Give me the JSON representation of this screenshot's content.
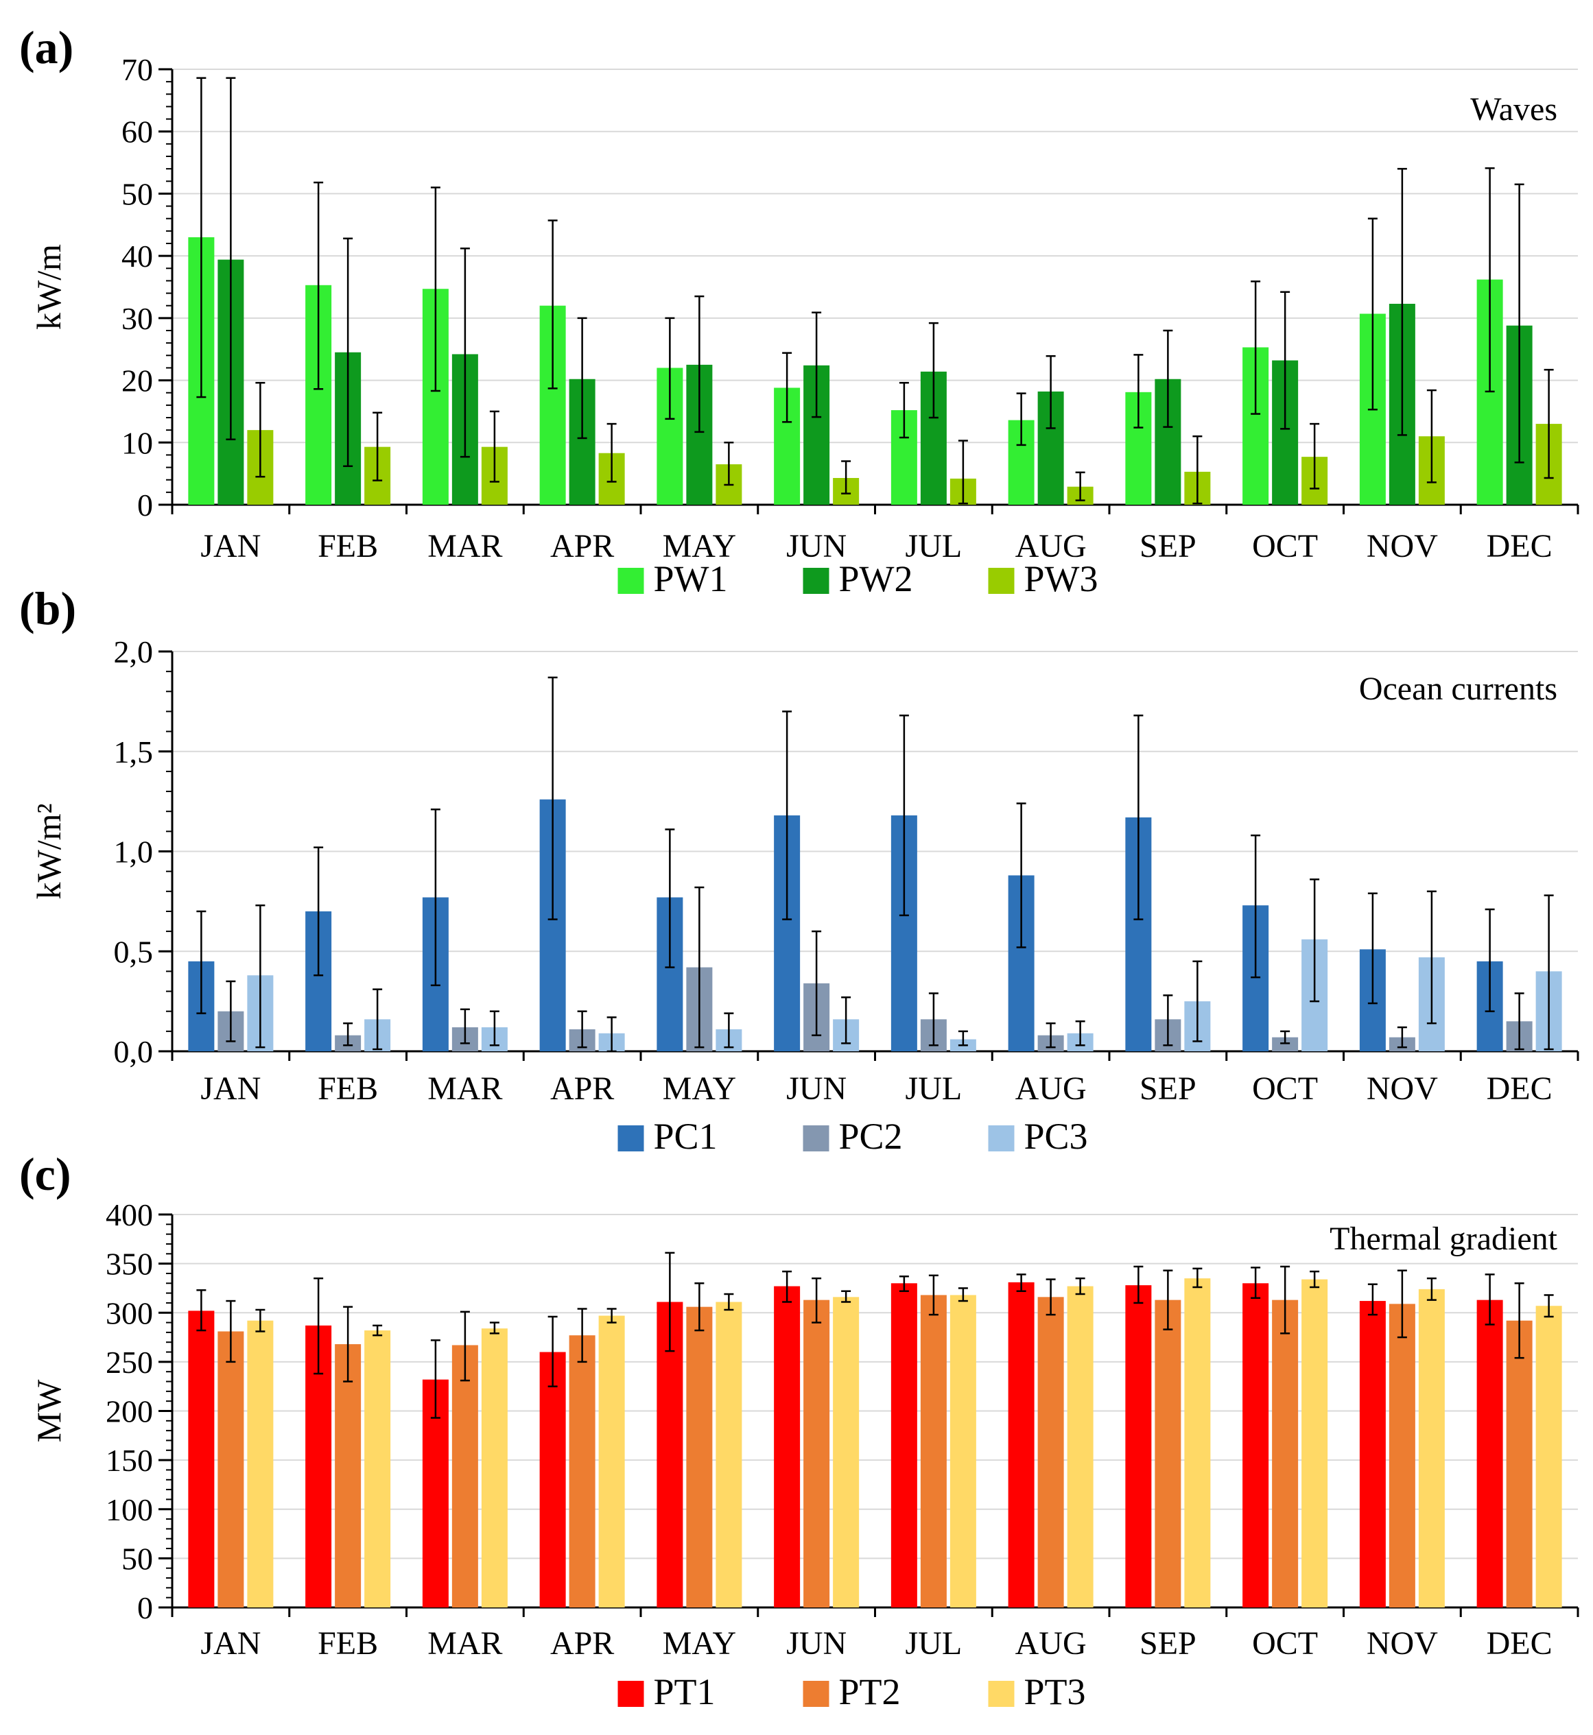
{
  "figure": {
    "panel_labels": [
      "(a)",
      "(b)",
      "(c)"
    ]
  },
  "chart_data": [
    {
      "type": "bar",
      "panel": "(a)",
      "title": "Waves",
      "ylabel": "kW/m",
      "xlabel": "",
      "ylim": [
        0,
        70
      ],
      "yticks": [
        0,
        10,
        20,
        30,
        40,
        50,
        60,
        70
      ],
      "ytick_labels": [
        "0",
        "10",
        "20",
        "30",
        "40",
        "50",
        "60",
        "70"
      ],
      "minor_ticks": 5,
      "categories": [
        "JAN",
        "FEB",
        "MAR",
        "APR",
        "MAY",
        "JUN",
        "JUL",
        "AUG",
        "SEP",
        "OCT",
        "NOV",
        "DEC"
      ],
      "legend_position": "bottom",
      "series": [
        {
          "name": "PW1",
          "color": "#33ee33",
          "values": [
            43,
            35.3,
            34.7,
            32,
            22,
            18.8,
            15.2,
            13.6,
            18.1,
            25.3,
            30.7,
            36.2
          ],
          "err_low": [
            17.3,
            18.6,
            18.3,
            18.7,
            13.8,
            13.3,
            10.8,
            9.6,
            12.4,
            14.6,
            15.3,
            18.2
          ],
          "err_high": [
            68.6,
            51.8,
            51,
            45.7,
            30,
            24.4,
            19.6,
            17.9,
            24.1,
            35.9,
            46,
            54.1
          ]
        },
        {
          "name": "PW2",
          "color": "#0e9a1e",
          "values": [
            39.4,
            24.5,
            24.2,
            20.2,
            22.5,
            22.4,
            21.4,
            18.2,
            20.2,
            23.2,
            32.3,
            28.8
          ],
          "err_low": [
            10.5,
            6.2,
            7.7,
            10.7,
            11.7,
            14.1,
            14,
            12.3,
            12.5,
            12.2,
            11.2,
            6.8
          ],
          "err_high": [
            68.6,
            42.8,
            41.2,
            30,
            33.5,
            30.9,
            29.2,
            23.9,
            28,
            34.2,
            54,
            51.5
          ]
        },
        {
          "name": "PW3",
          "color": "#99cc00",
          "values": [
            12,
            9.3,
            9.3,
            8.3,
            6.5,
            4.3,
            4.2,
            2.9,
            5.3,
            7.7,
            11,
            13
          ],
          "err_low": [
            4.5,
            3.9,
            3.7,
            3.7,
            3.2,
            1.8,
            0.2,
            0.7,
            0.2,
            2.6,
            3.6,
            4.3
          ],
          "err_high": [
            19.6,
            14.8,
            15,
            13,
            10,
            7,
            10.3,
            5.2,
            11,
            13,
            18.4,
            21.7
          ]
        }
      ]
    },
    {
      "type": "bar",
      "panel": "(b)",
      "title": "Ocean currents",
      "ylabel": "kW/m²",
      "xlabel": "",
      "ylim": [
        0,
        2
      ],
      "yticks": [
        0,
        0.5,
        1,
        1.5,
        2
      ],
      "ytick_labels": [
        "0,0",
        "0,5",
        "1,0",
        "1,5",
        "2,0"
      ],
      "minor_ticks": 5,
      "categories": [
        "JAN",
        "FEB",
        "MAR",
        "APR",
        "MAY",
        "JUN",
        "JUL",
        "AUG",
        "SEP",
        "OCT",
        "NOV",
        "DEC"
      ],
      "legend_position": "bottom",
      "series": [
        {
          "name": "PC1",
          "color": "#2e72b8",
          "values": [
            0.45,
            0.7,
            0.77,
            1.26,
            0.77,
            1.18,
            1.18,
            0.88,
            1.17,
            0.73,
            0.51,
            0.45
          ],
          "err_low": [
            0.19,
            0.38,
            0.33,
            0.66,
            0.42,
            0.66,
            0.68,
            0.52,
            0.66,
            0.37,
            0.24,
            0.2
          ],
          "err_high": [
            0.7,
            1.02,
            1.21,
            1.87,
            1.11,
            1.7,
            1.68,
            1.24,
            1.68,
            1.08,
            0.79,
            0.71
          ]
        },
        {
          "name": "PC2",
          "color": "#8497b0",
          "values": [
            0.2,
            0.08,
            0.12,
            0.11,
            0.42,
            0.34,
            0.16,
            0.08,
            0.16,
            0.07,
            0.07,
            0.15
          ],
          "err_low": [
            0.05,
            0.03,
            0.04,
            0.02,
            0.02,
            0.08,
            0.03,
            0.02,
            0.03,
            0.04,
            0.02,
            0.01
          ],
          "err_high": [
            0.35,
            0.14,
            0.21,
            0.2,
            0.82,
            0.6,
            0.29,
            0.14,
            0.28,
            0.1,
            0.12,
            0.29
          ]
        },
        {
          "name": "PC3",
          "color": "#9dc3e6",
          "values": [
            0.38,
            0.16,
            0.12,
            0.09,
            0.11,
            0.16,
            0.06,
            0.09,
            0.25,
            0.56,
            0.47,
            0.4
          ],
          "err_low": [
            0.02,
            0.01,
            0.03,
            0,
            0.02,
            0.04,
            0.03,
            0.03,
            0.05,
            0.25,
            0.14,
            0.01
          ],
          "err_high": [
            0.73,
            0.31,
            0.2,
            0.17,
            0.19,
            0.27,
            0.1,
            0.15,
            0.45,
            0.86,
            0.8,
            0.78
          ]
        }
      ]
    },
    {
      "type": "bar",
      "panel": "(c)",
      "title": "Thermal gradient",
      "ylabel": "MW",
      "xlabel": "",
      "ylim": [
        0,
        400
      ],
      "yticks": [
        0,
        50,
        100,
        150,
        200,
        250,
        300,
        350,
        400
      ],
      "ytick_labels": [
        "0",
        "50",
        "100",
        "150",
        "200",
        "250",
        "300",
        "350",
        "400"
      ],
      "minor_ticks": 5,
      "categories": [
        "JAN",
        "FEB",
        "MAR",
        "APR",
        "MAY",
        "JUN",
        "JUL",
        "AUG",
        "SEP",
        "OCT",
        "NOV",
        "DEC"
      ],
      "legend_position": "bottom",
      "series": [
        {
          "name": "PT1",
          "color": "#ff0000",
          "values": [
            302,
            287,
            232,
            260,
            311,
            327,
            330,
            331,
            328,
            330,
            312,
            313
          ],
          "err_low": [
            282,
            238,
            193,
            225,
            261,
            311,
            322,
            322,
            310,
            315,
            298,
            288
          ],
          "err_high": [
            323,
            335,
            272,
            296,
            361,
            342,
            337,
            339,
            347,
            346,
            329,
            339
          ]
        },
        {
          "name": "PT2",
          "color": "#ed7d31",
          "values": [
            281,
            268,
            267,
            277,
            306,
            313,
            318,
            316,
            313,
            313,
            309,
            292
          ],
          "err_low": [
            250,
            230,
            231,
            250,
            282,
            290,
            298,
            298,
            283,
            279,
            275,
            254
          ],
          "err_high": [
            312,
            306,
            301,
            304,
            330,
            335,
            338,
            334,
            343,
            347,
            343,
            330
          ]
        },
        {
          "name": "PT3",
          "color": "#ffd966",
          "values": [
            292,
            282,
            284,
            297,
            311,
            316,
            318,
            327,
            335,
            334,
            324,
            307
          ],
          "err_low": [
            281,
            277,
            279,
            290,
            303,
            311,
            312,
            319,
            326,
            326,
            313,
            296
          ],
          "err_high": [
            303,
            287,
            290,
            304,
            319,
            322,
            325,
            335,
            345,
            342,
            335,
            318
          ]
        }
      ]
    }
  ]
}
